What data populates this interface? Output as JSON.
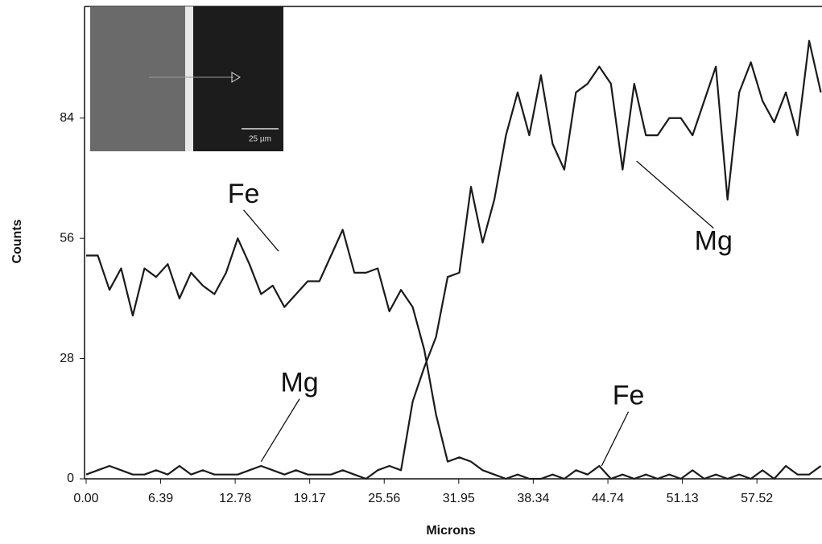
{
  "chart_data": {
    "type": "line",
    "x_label": "Microns",
    "y_label": "Counts",
    "x": [
      0,
      1,
      2,
      3,
      4,
      5,
      6,
      7,
      8,
      9,
      10,
      11,
      12,
      13,
      14,
      15,
      16,
      17,
      18,
      19,
      20,
      21,
      22,
      23,
      24,
      25,
      26,
      27,
      28,
      29,
      30,
      31,
      32,
      33,
      34,
      35,
      36,
      37,
      38,
      39,
      40,
      41,
      42,
      43,
      44,
      45,
      46,
      47,
      48,
      49,
      50,
      51,
      52,
      53,
      54,
      55,
      56,
      57,
      58,
      59,
      60,
      61,
      62,
      63
    ],
    "series": [
      {
        "name": "Fe",
        "color": "#1a1a1a",
        "values": [
          52,
          52,
          44,
          49,
          38,
          49,
          47,
          50,
          42,
          48,
          45,
          43,
          48,
          56,
          50,
          43,
          45,
          40,
          43,
          46,
          46,
          52,
          58,
          48,
          48,
          49,
          39,
          44,
          40,
          30,
          15,
          4,
          5,
          4,
          2,
          1,
          0,
          1,
          0,
          0,
          1,
          0,
          2,
          1,
          3,
          0,
          1,
          0,
          1,
          0,
          1,
          0,
          2,
          0,
          1,
          0,
          1,
          0,
          2,
          0,
          3,
          1,
          1,
          3
        ]
      },
      {
        "name": "Mg",
        "color": "#1a1a1a",
        "values": [
          1,
          2,
          3,
          2,
          1,
          1,
          2,
          1,
          3,
          1,
          2,
          1,
          1,
          1,
          2,
          3,
          2,
          1,
          2,
          1,
          1,
          1,
          2,
          1,
          0,
          2,
          3,
          2,
          18,
          26,
          33,
          47,
          48,
          68,
          55,
          65,
          80,
          90,
          80,
          94,
          78,
          72,
          90,
          92,
          96,
          92,
          72,
          92,
          80,
          80,
          84,
          84,
          80,
          88,
          96,
          65,
          90,
          97,
          88,
          83,
          90,
          80,
          102,
          90
        ]
      }
    ],
    "xlim": [
      0,
      63.1
    ],
    "ylim": [
      0,
      110
    ],
    "xticks": [
      {
        "value": 0,
        "label": "0.00"
      },
      6.39,
      12.78,
      19.17,
      25.56,
      31.95,
      38.34,
      44.74,
      51.13,
      57.52
    ],
    "yticks": [
      0,
      28,
      56,
      84
    ],
    "annotations": [
      {
        "text": "Fe",
        "x": 13.5,
        "y": 66,
        "to_x": 16.5,
        "to_y": 53
      },
      {
        "text": "Mg",
        "x": 53.8,
        "y": 55,
        "to_x": 47.2,
        "to_y": 74
      },
      {
        "text": "Mg",
        "x": 18.3,
        "y": 22,
        "to_x": 15.0,
        "to_y": 4
      },
      {
        "text": "Fe",
        "x": 46.5,
        "y": 19,
        "to_x": 44.2,
        "to_y": 3
      }
    ],
    "inset_scale_label": "25 µm"
  }
}
